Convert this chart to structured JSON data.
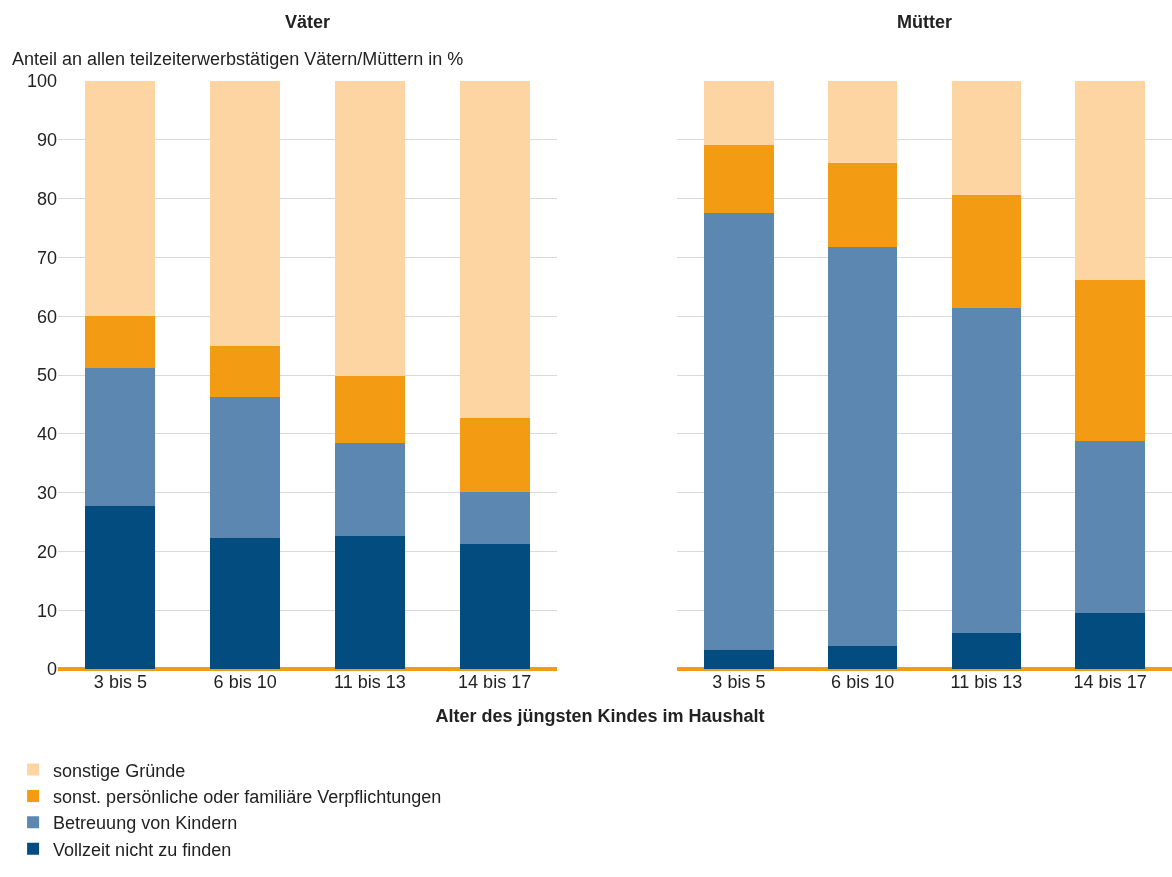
{
  "chart_data": [
    {
      "type": "bar",
      "title": "Väter",
      "ylabel": "Anteil an allen teilzeiterwerbstätigen Vätern/Müttern in %",
      "xlabel": "Alter des jüngsten Kindes im Haushalt",
      "categories": [
        "3 bis 5",
        "6 bis 10",
        "11 bis 13",
        "14 bis 17"
      ],
      "stacked": true,
      "ylim": [
        0,
        100
      ],
      "yticks": [
        0,
        10,
        20,
        30,
        40,
        50,
        60,
        70,
        80,
        90,
        100
      ],
      "grid": "y",
      "legend": "bottom left",
      "series": [
        {
          "name": "Vollzeit nicht zu finden",
          "color": "#034c80",
          "values": [
            27.7,
            22.3,
            22.6,
            21.3
          ]
        },
        {
          "name": "Betreuung von Kindern",
          "color": "#5b87b1",
          "values": [
            23.5,
            24.0,
            15.8,
            8.8
          ]
        },
        {
          "name": "sonst. persönliche oder familiäre Verpflichtungen",
          "color": "#f39b12",
          "values": [
            8.8,
            8.6,
            11.4,
            12.6
          ]
        },
        {
          "name": "sonstige Gründe",
          "color": "#fcd5a3",
          "values": [
            40.0,
            45.1,
            50.2,
            57.3
          ]
        }
      ]
    },
    {
      "type": "bar",
      "title": "Mütter",
      "categories": [
        "3 bis 5",
        "6 bis 10",
        "11 bis 13",
        "14 bis 17"
      ],
      "stacked": true,
      "ylim": [
        0,
        100
      ],
      "yticks": [
        0,
        10,
        20,
        30,
        40,
        50,
        60,
        70,
        80,
        90,
        100
      ],
      "grid": "y",
      "tick_labels": "x",
      "series": [
        {
          "color": "#034c80",
          "values": [
            3.2,
            3.9,
            6.1,
            9.5
          ]
        },
        {
          "color": "#5b87b1",
          "values": [
            74.4,
            67.9,
            55.3,
            29.3
          ]
        },
        {
          "color": "#f39b12",
          "values": [
            11.5,
            14.3,
            19.2,
            27.4
          ]
        },
        {
          "color": "#fcd5a3",
          "values": [
            10.9,
            13.9,
            19.4,
            33.8
          ]
        }
      ]
    }
  ]
}
